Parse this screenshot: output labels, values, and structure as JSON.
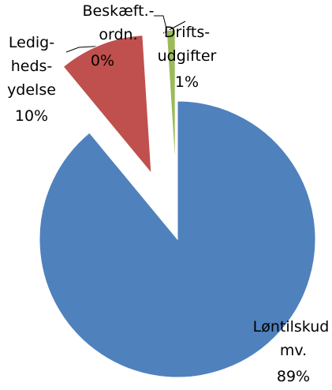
{
  "chart_data": {
    "type": "pie",
    "categories": [
      "Løntilskud mv.",
      "Ledig-heds-ydelse",
      "Beskæft.-ordn.",
      "Drifts-udgifter"
    ],
    "values": [
      89,
      10,
      0,
      1
    ],
    "value_labels": [
      "89%",
      "10%",
      "0%",
      "1%"
    ],
    "colors": [
      "#4f81bd",
      "#c0504d",
      "#9bbb59",
      "#9bbb59"
    ]
  }
}
